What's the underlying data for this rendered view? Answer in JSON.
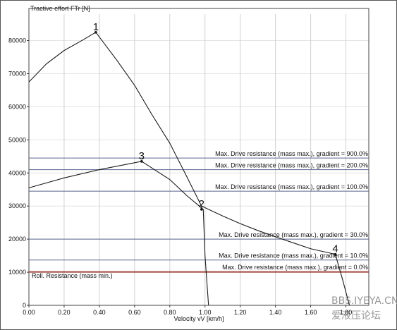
{
  "chart_data": {
    "type": "line",
    "ylabel": "Tractive effort FTr [N]",
    "xlabel": "Velocity vV [km/h]",
    "xlim": [
      0,
      1.93
    ],
    "ylim": [
      0,
      88000
    ],
    "xticks": [
      {
        "value": 0,
        "label": "0.00"
      },
      {
        "value": 0.2,
        "label": "0.20"
      },
      {
        "value": 0.4,
        "label": "0.40"
      },
      {
        "value": 0.6,
        "label": "0.60"
      },
      {
        "value": 0.8,
        "label": "0.80"
      },
      {
        "value": 1.0,
        "label": "1.00"
      },
      {
        "value": 1.2,
        "label": "1.20"
      },
      {
        "value": 1.4,
        "label": "1.40"
      },
      {
        "value": 1.6,
        "label": "1.60"
      },
      {
        "value": 1.8,
        "label": "1.80"
      }
    ],
    "yticks": [
      0,
      10000,
      20000,
      30000,
      40000,
      50000,
      60000,
      70000,
      80000
    ],
    "grid": true,
    "series": [
      {
        "color": "#1a1a1a",
        "x": [
          0,
          0.1,
          0.2,
          0.3,
          0.38,
          0.5,
          0.6,
          0.7,
          0.8,
          0.9,
          0.98,
          1.1,
          1.2,
          1.3,
          1.4,
          1.5,
          1.6,
          1.7,
          1.74,
          1.78,
          1.82
        ],
        "values": [
          67500,
          73000,
          77000,
          80000,
          82500,
          74000,
          66500,
          57500,
          49000,
          38500,
          30000,
          27000,
          24700,
          22600,
          20700,
          18900,
          17100,
          15900,
          15400,
          8000,
          0
        ]
      },
      {
        "color": "#1a1a1a",
        "x": [
          0,
          0.2,
          0.4,
          0.64,
          0.8,
          0.9,
          0.99,
          1.0,
          1.02
        ],
        "values": [
          35500,
          38500,
          41000,
          43500,
          38000,
          33000,
          29000,
          15000,
          0
        ]
      }
    ],
    "reference_lines": [
      {
        "label": "Max. Drive resistance (mass max.), gradient = 900.0%",
        "value": 44500,
        "color": "#5a6590",
        "side": "right"
      },
      {
        "label": "Max. Drive resistance (mass max.), gradient = 200.0%",
        "value": 41000,
        "color": "#5a6590",
        "side": "right"
      },
      {
        "label": "Max. Drive resistance (mass max.), gradient = 100.0%",
        "value": 34500,
        "color": "#5a6590",
        "side": "right"
      },
      {
        "label": "Max. Drive resistance (mass max.), gradient = 30.0%",
        "value": 20000,
        "color": "#5a6590",
        "side": "right"
      },
      {
        "label": "Max. Drive resistance (mass max.), gradient = 10.0%",
        "value": 13700,
        "color": "#5a6590",
        "side": "right"
      },
      {
        "label": "Max. Drive resistance (mass max.), gradient = 0.0%",
        "value": 10200,
        "color": "#a0403a",
        "side": "right"
      },
      {
        "label": "Roll. Resistance (mass min.)",
        "value": 10000,
        "color": "#a0403a",
        "side": "left"
      }
    ],
    "annotations": [
      {
        "text": "1",
        "x": 0.38,
        "y": 82500
      },
      {
        "text": "2",
        "x": 0.98,
        "y": 29000
      },
      {
        "text": "3",
        "x": 0.64,
        "y": 43500
      },
      {
        "text": "4",
        "x": 1.74,
        "y": 15400
      }
    ],
    "watermark": [
      "BBS.IYEYA.CN",
      "爱液压论坛"
    ]
  }
}
